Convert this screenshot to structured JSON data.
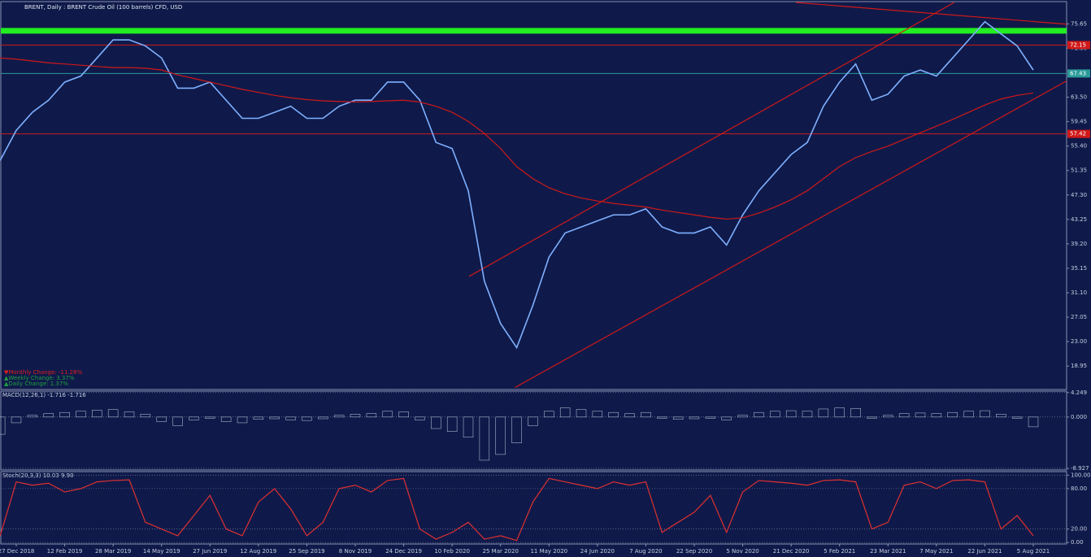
{
  "chart_data": [
    {
      "type": "line",
      "title": "BRENT, Daily : BRENT Crude Oil (100 barrels) CFD, USD",
      "categories": [
        null,
        "27 Dec 2018",
        null,
        null,
        "12 Feb 2019",
        null,
        null,
        "28 Mar 2019",
        null,
        null,
        "14 May 2019",
        null,
        null,
        "27 Jun 2019",
        null,
        null,
        "12 Aug 2019",
        null,
        null,
        "25 Sep 2019",
        null,
        null,
        "8 Nov 2019",
        null,
        null,
        "24 Dec 2019",
        null,
        null,
        "10 Feb 2020",
        null,
        null,
        "25 Mar 2020",
        null,
        null,
        "11 May 2020",
        null,
        null,
        "24 Jun 2020",
        null,
        null,
        "7 Aug 2020",
        null,
        null,
        "22 Sep 2020",
        null,
        null,
        "5 Nov 2020",
        null,
        null,
        "21 Dec 2020",
        null,
        null,
        "5 Feb 2021",
        null,
        null,
        "23 Mar 2021",
        null,
        null,
        "7 May 2021",
        null,
        null,
        "22 Jun 2021",
        null,
        null,
        "5 Aug 2021"
      ],
      "series": [
        {
          "name": "BRENT",
          "color": "#7fb0ff",
          "values": [
            53,
            58,
            61,
            63,
            66,
            67,
            70,
            73,
            73,
            72,
            70,
            65,
            65,
            66,
            63,
            60,
            60,
            61,
            62,
            60,
            60,
            62,
            63,
            63,
            66,
            66,
            63,
            56,
            55,
            48,
            33,
            26,
            22,
            29,
            37,
            41,
            42,
            43,
            44,
            44,
            45,
            42,
            41,
            41,
            42,
            39,
            44,
            48,
            51,
            54,
            56,
            62,
            66,
            69,
            63,
            64,
            67,
            68,
            67,
            70,
            73,
            76,
            74,
            72,
            68
          ]
        },
        {
          "name": "MA",
          "color": "#d01818",
          "values": [
            70,
            69.8,
            69.5,
            69.2,
            69,
            68.8,
            68.6,
            68.4,
            68.4,
            68.3,
            68,
            67.2,
            66.6,
            66,
            65.4,
            64.8,
            64.3,
            63.8,
            63.4,
            63.1,
            62.9,
            62.8,
            62.7,
            62.8,
            62.9,
            63,
            62.7,
            62,
            61,
            59.5,
            57.5,
            55,
            52,
            50,
            48.5,
            47.5,
            46.8,
            46.3,
            45.9,
            45.6,
            45.3,
            44.8,
            44.4,
            44,
            43.6,
            43.3,
            43.5,
            44.3,
            45.3,
            46.5,
            48,
            50,
            52,
            53.5,
            54.5,
            55.4,
            56.5,
            57.6,
            58.7,
            59.8,
            61,
            62.2,
            63.2,
            63.8,
            64.2
          ]
        }
      ],
      "ylim": [
        15.2,
        79.2
      ],
      "yticks": [
        75.65,
        {
          "value": 71.6,
          "label": "71.60"
        },
        {
          "value": 63.5,
          "label": "63.50"
        },
        59.45,
        {
          "value": 55.4,
          "label": "55.40"
        },
        51.35,
        {
          "value": 47.3,
          "label": "47.30"
        },
        43.25,
        {
          "value": 39.2,
          "label": "39.20"
        },
        35.15,
        {
          "value": 31.1,
          "label": "31.10"
        },
        27.05,
        {
          "value": 23,
          "label": "23.00"
        },
        18.95
      ],
      "levels": [
        {
          "value": 74.5,
          "color": "#22ee22"
        },
        {
          "value": 72.15,
          "label": "72.15",
          "color": "#d01818"
        },
        {
          "value": 67.43,
          "label": "67.43",
          "color": "#2a9a9a"
        },
        {
          "value": 57.42,
          "label": "57.42",
          "color": "#d01818"
        }
      ],
      "trend_lines": [
        {
          "color": "#d01818",
          "x": [
            31.9,
            66.1
          ],
          "values": [
            15.4,
            66.2
          ]
        },
        {
          "color": "#d01818",
          "x": [
            29.05,
            59.1
          ],
          "values": [
            33.8,
            79.2
          ]
        },
        {
          "color": "#d01818",
          "x": [
            49.3,
            66.1
          ],
          "values": [
            79.2,
            75.6
          ]
        }
      ],
      "annotations": [
        {
          "text": "▼Monthly Change: -11.28%",
          "color": "#e02020"
        },
        {
          "text": "▲Weekly Change: 3.37%",
          "color": "#20a040"
        },
        {
          "text": "▲Daily Change: 1.37%",
          "color": "#20a040"
        }
      ]
    },
    {
      "type": "bar",
      "title": "MACD(12,26,1) -1.716 -1.716",
      "color": "#c8cde0",
      "values": [
        -3,
        -1,
        0.3,
        0.6,
        0.8,
        1.0,
        1.2,
        1.3,
        0.9,
        0.5,
        -0.8,
        -1.5,
        -0.5,
        -0.2,
        -0.8,
        -1.0,
        -0.4,
        -0.3,
        -0.5,
        -0.6,
        -0.3,
        0.3,
        0.5,
        0.6,
        1.0,
        0.9,
        -0.5,
        -2.0,
        -2.5,
        -3.5,
        -7.5,
        -6.5,
        -4.5,
        -1.5,
        1.0,
        1.6,
        1.3,
        1.0,
        0.8,
        0.6,
        0.8,
        -0.2,
        -0.4,
        -0.3,
        -0.2,
        -0.5,
        0.3,
        0.8,
        1.0,
        1.1,
        1.0,
        1.4,
        1.6,
        1.5,
        -0.2,
        0.3,
        0.6,
        0.7,
        0.6,
        0.8,
        1.0,
        1.1,
        0.5,
        -0.2,
        -1.7
      ],
      "ylim": [
        -9.2,
        4.5
      ],
      "yticks": [
        4.249,
        {
          "value": 0,
          "label": "0.000"
        },
        -8.927
      ]
    },
    {
      "type": "line",
      "title": "Stoch(20,3,3) 10.03 9.90",
      "series": [
        {
          "name": "Stoch",
          "color": "#e03030",
          "values": [
            10,
            90,
            85,
            88,
            75,
            80,
            90,
            92,
            93,
            30,
            20,
            10,
            40,
            70,
            20,
            10,
            60,
            80,
            50,
            10,
            30,
            80,
            85,
            75,
            92,
            95,
            20,
            5,
            15,
            30,
            5,
            10,
            3,
            60,
            95,
            90,
            85,
            80,
            90,
            85,
            90,
            15,
            30,
            45,
            70,
            15,
            75,
            92,
            90,
            88,
            85,
            92,
            93,
            90,
            20,
            30,
            85,
            90,
            80,
            92,
            93,
            90,
            20,
            40,
            10
          ]
        }
      ],
      "ylim": [
        -1,
        104
      ],
      "yticks": [
        {
          "value": 100,
          "label": "100.00"
        },
        {
          "value": 80,
          "label": "80.00"
        },
        {
          "value": 20,
          "label": "20.00"
        },
        {
          "value": 0,
          "label": "0.00"
        }
      ]
    }
  ]
}
